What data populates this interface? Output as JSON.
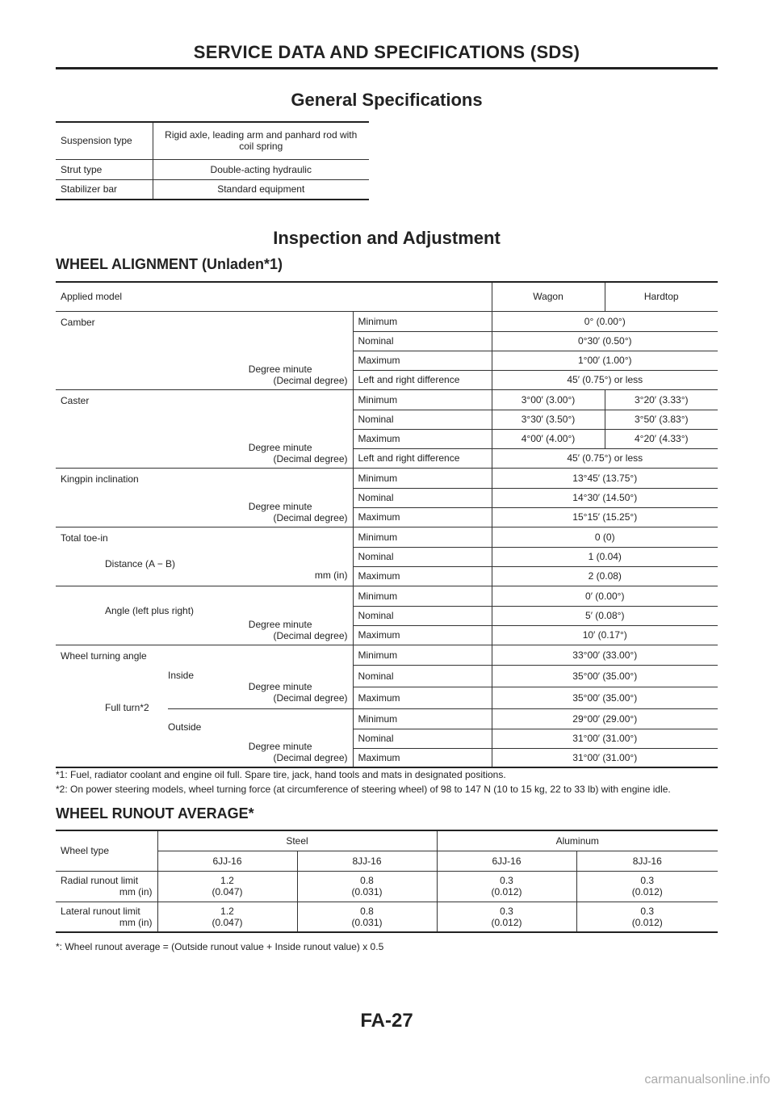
{
  "header": {
    "title": "SERVICE DATA AND SPECIFICATIONS (SDS)"
  },
  "general": {
    "title": "General Specifications",
    "rows": [
      {
        "label": "Suspension type",
        "value": "Rigid axle, leading arm and panhard rod with coil spring"
      },
      {
        "label": "Strut type",
        "value": "Double-acting hydraulic"
      },
      {
        "label": "Stabilizer bar",
        "value": "Standard equipment"
      }
    ]
  },
  "inspection": {
    "title": "Inspection and Adjustment"
  },
  "alignment": {
    "title": "WHEEL ALIGNMENT (Unladen*1)",
    "applied_model": "Applied model",
    "wagon": "Wagon",
    "hardtop": "Hardtop",
    "dm": "Degree minute",
    "dec": "(Decimal degree)",
    "mmin": "mm (in)",
    "min": "Minimum",
    "nom": "Nominal",
    "max": "Maximum",
    "lrd": "Left and right difference",
    "camber": {
      "label": "Camber",
      "min": "0° (0.00°)",
      "nom": "0°30′ (0.50°)",
      "max": "1°00′ (1.00°)",
      "lrd": "45′ (0.75°) or less"
    },
    "caster": {
      "label": "Caster",
      "min_w": "3°00′ (3.00°)",
      "min_h": "3°20′ (3.33°)",
      "nom_w": "3°30′ (3.50°)",
      "nom_h": "3°50′ (3.83°)",
      "max_w": "4°00′ (4.00°)",
      "max_h": "4°20′ (4.33°)",
      "lrd": "45′ (0.75°) or less"
    },
    "kingpin": {
      "label": "Kingpin inclination",
      "min": "13°45′ (13.75°)",
      "nom": "14°30′ (14.50°)",
      "max": "15°15′ (15.25°)"
    },
    "toe": {
      "label": "Total toe-in",
      "dist_label": "Distance (A − B)",
      "angle_label": "Angle (left plus right)",
      "dmin": "0 (0)",
      "dnom": "1 (0.04)",
      "dmax": "2 (0.08)",
      "amin": "0′ (0.00°)",
      "anom": "5′ (0.08°)",
      "amax": "10′ (0.17°)"
    },
    "turning": {
      "label": "Wheel turning angle",
      "full": "Full turn*2",
      "inside": "Inside",
      "outside": "Outside",
      "imin": "33°00′ (33.00°)",
      "inom": "35°00′ (35.00°)",
      "imax": "35°00′ (35.00°)",
      "omin": "29°00′ (29.00°)",
      "onom": "31°00′ (31.00°)",
      "omax": "31°00′ (31.00°)"
    },
    "notes": [
      "*1: Fuel, radiator coolant and engine oil full. Spare tire, jack, hand tools and mats in designated positions.",
      "*2: On power steering models, wheel turning force (at circumference of steering wheel) of 98 to 147 N (10 to 15 kg, 22 to 33 lb) with engine idle."
    ]
  },
  "runout": {
    "title": "WHEEL RUNOUT AVERAGE*",
    "wheel_type": "Wheel type",
    "steel": "Steel",
    "aluminum": "Aluminum",
    "sizes": [
      "6JJ-16",
      "8JJ-16",
      "6JJ-16",
      "8JJ-16"
    ],
    "radial": "Radial runout limit",
    "lateral": "Lateral runout limit",
    "unit": "mm (in)",
    "radial_vals": [
      [
        "1.2",
        "(0.047)"
      ],
      [
        "0.8",
        "(0.031)"
      ],
      [
        "0.3",
        "(0.012)"
      ],
      [
        "0.3",
        "(0.012)"
      ]
    ],
    "lateral_vals": [
      [
        "1.2",
        "(0.047)"
      ],
      [
        "0.8",
        "(0.031)"
      ],
      [
        "0.3",
        "(0.012)"
      ],
      [
        "0.3",
        "(0.012)"
      ]
    ],
    "note": "*: Wheel runout average = (Outside runout value + Inside runout value) x 0.5"
  },
  "footer": {
    "page": "FA-27",
    "watermark": "carmanualsonline.info"
  }
}
